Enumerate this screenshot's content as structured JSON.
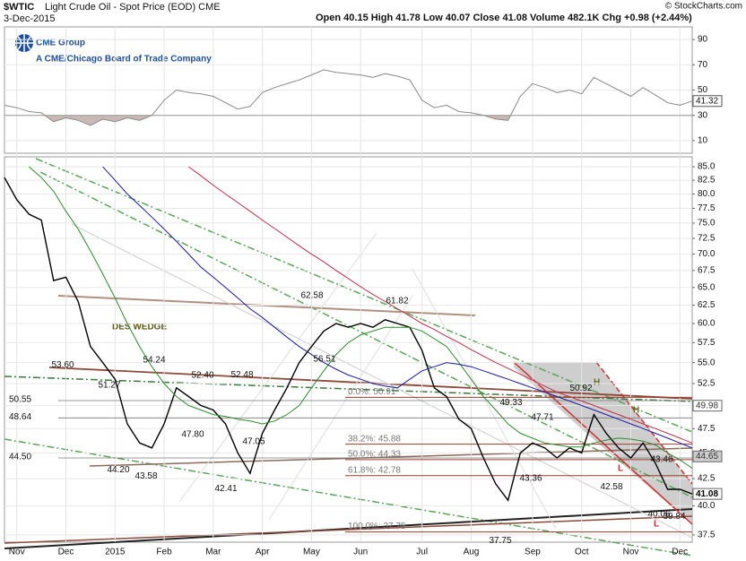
{
  "header": {
    "symbol": "$WTIC",
    "name": "Light Crude Oil - Spot Price (EOD) CME",
    "date": "3-Dec-2015",
    "quote": "Open 40.15  High 41.78  Low 40.07  Close 41.08  Volume 482.1K  Chg +0.98 (+2.44%)",
    "copyright": "© StockCharts.com"
  },
  "logo": {
    "name": "CME Group",
    "tagline": "A CME/Chicago Board of Trade Company"
  },
  "chart_data": [
    {
      "type": "line",
      "series": [
        {
          "color": "#8a8a8a",
          "values": [
            38,
            36,
            33,
            32,
            25,
            28,
            26,
            22,
            27,
            25,
            28,
            26,
            30,
            42,
            50,
            48,
            47,
            45,
            40,
            35,
            37,
            48,
            52,
            55,
            58,
            62,
            66,
            64,
            63,
            62,
            60,
            63,
            61,
            58,
            42,
            36,
            38,
            33,
            32,
            30,
            27,
            26,
            45,
            55,
            52,
            48,
            50,
            47,
            60,
            55,
            50,
            45,
            52,
            46,
            40,
            38,
            41.32
          ]
        }
      ],
      "ylim": [
        0,
        100
      ],
      "yticks": [
        10,
        30,
        50,
        70,
        90
      ],
      "shade_below": 30,
      "last_value": 41.32
    },
    {
      "type": "line",
      "log_scale": true,
      "categories": [
        null,
        "Nov",
        null,
        null,
        null,
        "Dec",
        null,
        null,
        null,
        "2015",
        null,
        null,
        null,
        "Feb",
        null,
        null,
        null,
        "Mar",
        null,
        null,
        null,
        "Apr",
        null,
        null,
        null,
        "May",
        null,
        null,
        null,
        "Jun",
        null,
        null,
        null,
        null,
        "Jul",
        null,
        null,
        null,
        "Aug",
        null,
        null,
        null,
        null,
        "Sep",
        null,
        null,
        null,
        "Oct",
        null,
        null,
        null,
        "Nov",
        null,
        null,
        null,
        "Dec",
        null
      ],
      "series": [
        {
          "color": "#000000",
          "values": [
            83,
            79,
            76.5,
            75.5,
            66,
            66.5,
            63,
            57,
            55,
            53,
            48,
            46,
            45.5,
            48,
            52,
            51,
            50,
            49.5,
            48,
            45,
            43,
            47,
            49.5,
            52,
            55,
            57,
            59,
            60,
            59.5,
            60,
            59.5,
            60.5,
            60,
            59.5,
            56.5,
            52,
            51,
            48.5,
            47.5,
            44.5,
            42,
            40.5,
            45,
            46,
            45.5,
            44.5,
            45.5,
            45,
            49,
            47,
            45.5,
            44.5,
            46,
            44,
            41.5,
            41.5,
            41.08
          ]
        },
        {
          "color": "#2e8b2e",
          "values": [
            null,
            null,
            85,
            83,
            80.5,
            77,
            74,
            70.5,
            67,
            63.5,
            60,
            57,
            54.5,
            52.5,
            51,
            50,
            49.5,
            49,
            48.8,
            48.5,
            48.3,
            48,
            48.3,
            49,
            50,
            52,
            54,
            56,
            57.5,
            58.5,
            59,
            59.5,
            59.5,
            59.5,
            59,
            58,
            57,
            55,
            53,
            51,
            49.5,
            48,
            47,
            46.5,
            46,
            45.8,
            45.6,
            45.6,
            46,
            46.3,
            46.5,
            46.4,
            46.2,
            45.8,
            45,
            44.3,
            43.5
          ]
        },
        {
          "color": "#1a1aa0",
          "values": [
            null,
            null,
            null,
            null,
            null,
            null,
            null,
            null,
            85,
            82.5,
            80,
            78,
            76,
            74,
            72,
            70,
            68,
            66.5,
            65,
            63.5,
            62,
            60.8,
            59.5,
            58.2,
            57,
            56,
            55,
            54.2,
            53.5,
            53,
            52.5,
            52.2,
            52,
            53,
            54,
            54.5,
            55,
            54.8,
            54.5,
            54,
            53.5,
            53,
            52.5,
            52,
            51.5,
            51,
            50.5,
            50,
            49.5,
            49,
            48.5,
            48,
            47.5,
            47,
            46.5,
            46,
            45.5
          ]
        },
        {
          "color": "#c0304a",
          "values": [
            null,
            null,
            null,
            null,
            null,
            null,
            null,
            null,
            null,
            null,
            null,
            null,
            null,
            null,
            null,
            85,
            83.3,
            81.6,
            80,
            78.5,
            77,
            75.5,
            74.1,
            72.7,
            71.3,
            70,
            68.8,
            67.5,
            66.3,
            65.1,
            64,
            63,
            62,
            61,
            60,
            59.2,
            58.3,
            57.5,
            56.6,
            55.8,
            55,
            54.3,
            53.6,
            52.9,
            52.2,
            51.5,
            51,
            50.5,
            50,
            49.5,
            49,
            48.5,
            48,
            47.5,
            47,
            46.5,
            46
          ]
        }
      ],
      "ylim": [
        36.9,
        86.9
      ],
      "yticks": [
        37.5,
        {
          "value": 40,
          "label": "40.0"
        },
        42.5,
        {
          "value": 45,
          "label": "45.0"
        },
        47.5,
        {
          "value": 50,
          "label": "50.0"
        },
        52.5,
        {
          "value": 55,
          "label": "55.0"
        },
        57.5,
        {
          "value": 60,
          "label": "60.0"
        },
        62.5,
        {
          "value": 65,
          "label": "65.0"
        },
        67.5,
        {
          "value": 70,
          "label": "70.0"
        },
        72.5,
        {
          "value": 75,
          "label": "75.0"
        },
        77.5,
        {
          "value": 80,
          "label": "80.0"
        },
        82.5,
        {
          "value": 85,
          "label": "85.0"
        }
      ],
      "annotations": [
        53.6,
        51.27,
        54.24,
        52.4,
        52.48,
        62.58,
        61.82,
        56.51,
        44.2,
        43.58,
        47.8,
        42.41,
        47.05,
        49.33,
        47.71,
        43.36,
        37.75,
        50.92,
        43.46,
        42.58,
        40.06,
        39.84
      ],
      "value_labels": [
        "53.60",
        "51.27",
        "54.24",
        "52.40",
        "52.48",
        "62.58",
        "61.82",
        "56.51",
        "44.20",
        "43.58",
        "47.80",
        "42.41",
        "47.05",
        "49.33",
        "47.71",
        "43.36",
        "37.75",
        "50.92",
        "43.46",
        "42.58",
        "40.06",
        "39.84"
      ],
      "levels": [
        {
          "value": 50.55,
          "label": "50.55"
        },
        {
          "value": 48.64,
          "label": "48.64"
        },
        {
          "value": 44.5,
          "label": "44.50"
        }
      ],
      "fib": [
        {
          "value": 50.91,
          "label": "0.0%: 50.91"
        },
        {
          "value": 45.88,
          "label": "38.2%: 45.88"
        },
        {
          "value": 44.33,
          "label": "50.0%: 44.33"
        },
        {
          "value": 42.78,
          "label": "61.8%: 42.78"
        },
        {
          "value": 37.75,
          "label": "100.0%: 37.75"
        }
      ],
      "right_labels": [
        49.98,
        44.65,
        41.08
      ],
      "note": "DES WEDGE",
      "markers": [
        "H",
        "H",
        "L",
        "L"
      ]
    }
  ]
}
